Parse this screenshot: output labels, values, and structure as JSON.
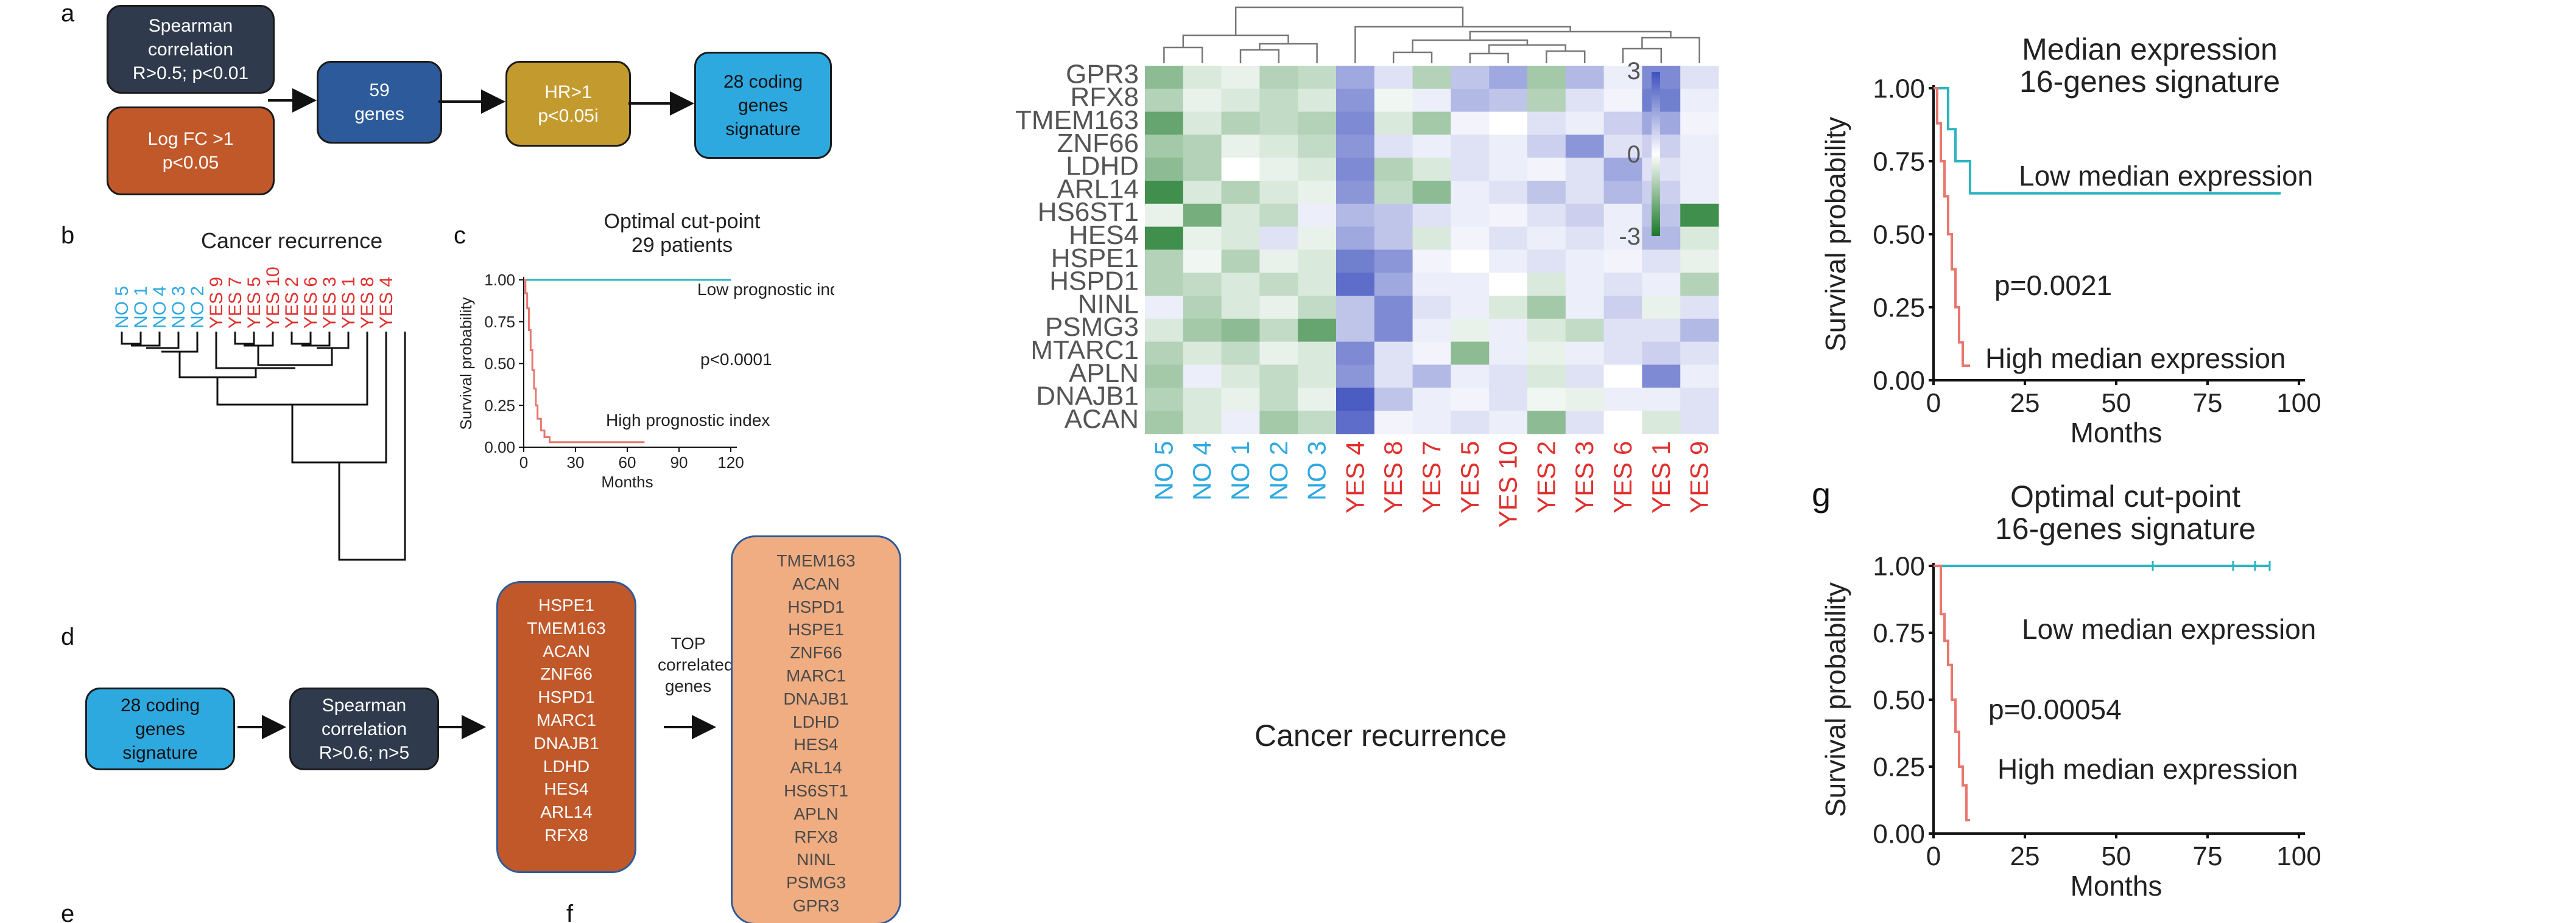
{
  "panel_labels": {
    "a": "a",
    "b": "b",
    "c": "c",
    "d": "d",
    "e": "e",
    "f": "f",
    "g": "g"
  },
  "panel_a": {
    "box_spearman": [
      "Spearman",
      "correlation",
      "R>0.5; p<0.01"
    ],
    "box_logfc": [
      "Log FC >1",
      "p<0.05"
    ],
    "box_genes": [
      "59",
      "genes"
    ],
    "box_hr": [
      "HR>1",
      "p<0.05i"
    ],
    "box_signature": [
      "28 coding",
      "genes",
      "signature"
    ]
  },
  "panel_b": {
    "title": "Cancer recurrence",
    "leaves": [
      {
        "label": "NO 5",
        "color": "#2ea9e0"
      },
      {
        "label": "NO 1",
        "color": "#2ea9e0"
      },
      {
        "label": "NO 4",
        "color": "#2ea9e0"
      },
      {
        "label": "NO 3",
        "color": "#2ea9e0"
      },
      {
        "label": "NO 2",
        "color": "#2ea9e0"
      },
      {
        "label": "YES 9",
        "color": "#e0302e"
      },
      {
        "label": "YES 7",
        "color": "#e0302e"
      },
      {
        "label": "YES 5",
        "color": "#e0302e"
      },
      {
        "label": "YES 10",
        "color": "#e0302e"
      },
      {
        "label": "YES 2",
        "color": "#e0302e"
      },
      {
        "label": "YES 6",
        "color": "#e0302e"
      },
      {
        "label": "YES 3",
        "color": "#e0302e"
      },
      {
        "label": "YES 1",
        "color": "#e0302e"
      },
      {
        "label": "YES 8",
        "color": "#e0302e"
      },
      {
        "label": "YES 4",
        "color": "#e0302e"
      }
    ]
  },
  "panel_c": {
    "title_line1": "Optimal cut-point",
    "title_line2": "29 patients",
    "ylabel": "Survival probability",
    "xlabel": "Months",
    "annot_low": "Low prognostic index",
    "annot_p": "p<0.0001",
    "annot_high": "High prognostic index"
  },
  "panel_d": {
    "box_signature": [
      "28 coding",
      "genes",
      "signature"
    ],
    "box_spearman": [
      "Spearman",
      "correlation",
      "R>0.6; n>5"
    ],
    "top_label": [
      "TOP",
      "correlated",
      "genes"
    ],
    "list1": [
      "HSPE1",
      "TMEM163",
      "ACAN",
      "ZNF66",
      "HSPD1",
      "MARC1",
      "DNAJB1",
      "LDHD",
      "HES4",
      "ARL14",
      "RFX8"
    ],
    "list2": [
      "TMEM163",
      "ACAN",
      "HSPD1",
      "HSPE1",
      "ZNF66",
      "MARC1",
      "DNAJB1",
      "LDHD",
      "HES4",
      "ARL14",
      "HS6ST1",
      "APLN",
      "RFX8",
      "NINL",
      "PSMG3",
      "GPR3"
    ]
  },
  "panel_heatmap": {
    "xlabel": "Cancer recurrence",
    "colorbar_ticks": [
      "3",
      "0",
      "-3"
    ]
  },
  "panel_f_label": "Median expression\n16-genes signature",
  "panel_f": {
    "title_line1": "Median expression",
    "title_line2": "16-genes signature",
    "ylabel": "Survival probability",
    "xlabel": "Months",
    "annot_low": "Low median expression",
    "annot_p": "p=0.0021",
    "annot_high": "High median expression"
  },
  "panel_g": {
    "title_line1": "Optimal cut-point",
    "title_line2": "16-genes signature",
    "ylabel": "Survival probability",
    "xlabel": "Months",
    "annot_low": "Low median expression",
    "annot_p": "p=0.00054",
    "annot_high": "High median expression"
  },
  "colors": {
    "low": "#2bb5c0",
    "high": "#e8776e",
    "no": "#2ea9e0",
    "yes": "#e0302e"
  },
  "chart_data": [
    {
      "type": "heatmap",
      "title": "",
      "xlabel": "Cancer recurrence",
      "ylabel": "",
      "rows": [
        "GPR3",
        "RFX8",
        "TMEM163",
        "ZNF66",
        "LDHD",
        "ARL14",
        "HS6ST1",
        "HES4",
        "HSPE1",
        "HSPD1",
        "NINL",
        "PSMG3",
        "MTARC1",
        "APLN",
        "DNAJB1",
        "ACAN"
      ],
      "columns": [
        "NO 5",
        "NO 4",
        "NO 1",
        "NO 2",
        "NO 3",
        "YES 4",
        "YES 8",
        "YES 7",
        "YES 5",
        "YES 10",
        "YES 2",
        "YES 3",
        "YES 6",
        "YES 1",
        "YES 9"
      ],
      "column_colors": [
        "#2ea9e0",
        "#2ea9e0",
        "#2ea9e0",
        "#2ea9e0",
        "#2ea9e0",
        "#e0302e",
        "#e0302e",
        "#e0302e",
        "#e0302e",
        "#e0302e",
        "#e0302e",
        "#e0302e",
        "#e0302e",
        "#e0302e",
        "#e0302e"
      ],
      "values": [
        [
          -1.5,
          -0.5,
          -0.3,
          -1.0,
          -0.8,
          1.5,
          0.5,
          -1.0,
          1.0,
          1.5,
          -1.2,
          1.2,
          0.3,
          2.0,
          0.5
        ],
        [
          -1.0,
          -0.3,
          -0.5,
          -0.8,
          -0.5,
          1.8,
          -0.2,
          0.3,
          1.2,
          1.0,
          -1.0,
          0.5,
          0.2,
          2.2,
          0.3
        ],
        [
          -2.0,
          -0.5,
          -1.0,
          -0.8,
          -1.0,
          2.0,
          -0.5,
          -1.2,
          0.2,
          0.0,
          0.5,
          0.3,
          0.8,
          1.5,
          0.2
        ],
        [
          -1.2,
          -1.0,
          -0.3,
          -0.5,
          -0.8,
          1.8,
          0.5,
          0.3,
          0.5,
          0.3,
          0.8,
          1.8,
          0.5,
          0.8,
          0.3
        ],
        [
          -1.5,
          -1.0,
          0.0,
          -0.3,
          -0.5,
          2.0,
          -1.0,
          -0.5,
          0.5,
          0.3,
          0.2,
          0.5,
          1.5,
          0.5,
          0.3
        ],
        [
          -2.5,
          -0.5,
          -1.0,
          -0.5,
          -0.3,
          1.8,
          -0.8,
          -1.5,
          0.3,
          0.5,
          1.0,
          0.5,
          1.2,
          0.8,
          0.3
        ],
        [
          -0.3,
          -1.8,
          -0.5,
          -0.8,
          0.3,
          1.2,
          1.0,
          0.5,
          0.3,
          0.2,
          0.5,
          0.8,
          0.3,
          1.0,
          -2.5
        ],
        [
          -2.5,
          -0.3,
          -0.5,
          0.5,
          -0.3,
          1.5,
          1.0,
          -0.5,
          0.2,
          0.5,
          0.3,
          0.5,
          0.3,
          1.2,
          -0.5
        ],
        [
          -1.0,
          -0.2,
          -1.0,
          -0.3,
          -0.5,
          2.2,
          1.8,
          0.2,
          0.0,
          0.3,
          0.5,
          0.3,
          0.2,
          0.5,
          -0.3
        ],
        [
          -1.0,
          -0.8,
          -0.5,
          -0.8,
          -0.5,
          2.5,
          1.5,
          0.3,
          0.3,
          0.0,
          -0.5,
          0.3,
          0.5,
          0.3,
          -1.0
        ],
        [
          0.3,
          -1.0,
          -0.5,
          -0.3,
          -0.8,
          1.0,
          2.0,
          0.5,
          0.3,
          -0.5,
          -1.2,
          0.3,
          0.8,
          -0.3,
          0.5
        ],
        [
          -0.5,
          -1.2,
          -1.5,
          -0.8,
          -2.0,
          1.0,
          2.0,
          0.3,
          -0.3,
          0.3,
          -0.5,
          -0.8,
          0.5,
          0.5,
          1.2
        ],
        [
          -1.0,
          -0.5,
          -0.8,
          -0.3,
          -0.5,
          2.0,
          0.5,
          0.2,
          -1.5,
          0.3,
          -0.3,
          0.3,
          0.5,
          0.8,
          0.5
        ],
        [
          -1.2,
          0.3,
          -0.5,
          -0.8,
          -0.5,
          1.8,
          0.5,
          1.2,
          0.3,
          0.5,
          -0.5,
          0.5,
          0.0,
          2.0,
          0.3
        ],
        [
          -1.0,
          -0.5,
          -0.3,
          -0.8,
          -0.3,
          2.8,
          1.0,
          0.3,
          0.2,
          0.5,
          -0.2,
          -0.3,
          0.3,
          0.3,
          0.5
        ],
        [
          -1.2,
          -0.5,
          0.3,
          -1.2,
          -0.8,
          2.5,
          0.2,
          0.3,
          0.5,
          0.3,
          -1.5,
          0.5,
          0.0,
          -0.5,
          0.5
        ]
      ],
      "colorbar": {
        "min": -3,
        "max": 3,
        "ticks": [
          3,
          0,
          -3
        ]
      }
    },
    {
      "type": "line",
      "title": "Optimal cut-point 29 patients",
      "xlabel": "Months",
      "ylabel": "Survival probability",
      "xlim": [
        0,
        120
      ],
      "ylim": [
        0,
        1
      ],
      "xticks": [
        0,
        30,
        60,
        90,
        120
      ],
      "yticks": [
        "0.00",
        "0.25",
        "0.50",
        "0.75",
        "1.00"
      ],
      "series": [
        {
          "name": "Low prognostic index",
          "x": [
            0,
            120
          ],
          "y": [
            1.0,
            1.0
          ]
        },
        {
          "name": "High prognostic index",
          "x": [
            0,
            1,
            1,
            2,
            2,
            3,
            3,
            4,
            4,
            5,
            5,
            6,
            6,
            7,
            7,
            8,
            8,
            10,
            10,
            12,
            12,
            15,
            15,
            70
          ],
          "y": [
            1.0,
            1.0,
            0.92,
            0.92,
            0.83,
            0.83,
            0.7,
            0.7,
            0.58,
            0.58,
            0.46,
            0.46,
            0.35,
            0.35,
            0.25,
            0.25,
            0.17,
            0.17,
            0.1,
            0.1,
            0.06,
            0.06,
            0.03,
            0.03
          ]
        }
      ],
      "annotations": [
        "p<0.0001"
      ]
    },
    {
      "type": "line",
      "title": "Median expression 16-genes signature",
      "xlabel": "Months",
      "ylabel": "Survival probability",
      "xlim": [
        0,
        100
      ],
      "ylim": [
        0,
        1
      ],
      "xticks": [
        0,
        25,
        50,
        75,
        100
      ],
      "yticks": [
        "0.00",
        "0.25",
        "0.50",
        "0.75",
        "1.00"
      ],
      "series": [
        {
          "name": "Low median expression",
          "x": [
            0,
            4,
            4,
            6,
            6,
            10,
            10,
            95
          ],
          "y": [
            1.0,
            1.0,
            0.86,
            0.86,
            0.75,
            0.75,
            0.64,
            0.64
          ]
        },
        {
          "name": "High median expression",
          "x": [
            0,
            1,
            1,
            2,
            2,
            3,
            3,
            4,
            4,
            5,
            5,
            6,
            6,
            7,
            7,
            8,
            8,
            10
          ],
          "y": [
            1.0,
            1.0,
            0.88,
            0.88,
            0.75,
            0.75,
            0.63,
            0.63,
            0.5,
            0.5,
            0.38,
            0.38,
            0.25,
            0.25,
            0.13,
            0.13,
            0.05,
            0.05
          ]
        }
      ],
      "annotations": [
        "p=0.0021"
      ]
    },
    {
      "type": "line",
      "title": "Optimal cut-point 16-genes signature",
      "xlabel": "Months",
      "ylabel": "Survival probability",
      "xlim": [
        0,
        100
      ],
      "ylim": [
        0,
        1
      ],
      "xticks": [
        0,
        25,
        50,
        75,
        100
      ],
      "yticks": [
        "0.00",
        "0.25",
        "0.50",
        "0.75",
        "1.00"
      ],
      "series": [
        {
          "name": "Low median expression",
          "x": [
            0,
            92
          ],
          "y": [
            1.0,
            1.0
          ]
        },
        {
          "name": "High median expression",
          "x": [
            0,
            2,
            2,
            3,
            3,
            4,
            4,
            5,
            5,
            6,
            6,
            7,
            7,
            8,
            8,
            9,
            9,
            10
          ],
          "y": [
            1.0,
            1.0,
            0.82,
            0.82,
            0.72,
            0.72,
            0.63,
            0.63,
            0.5,
            0.5,
            0.38,
            0.38,
            0.25,
            0.25,
            0.18,
            0.18,
            0.05,
            0.05
          ]
        }
      ],
      "annotations": [
        "p=0.00054"
      ]
    }
  ]
}
